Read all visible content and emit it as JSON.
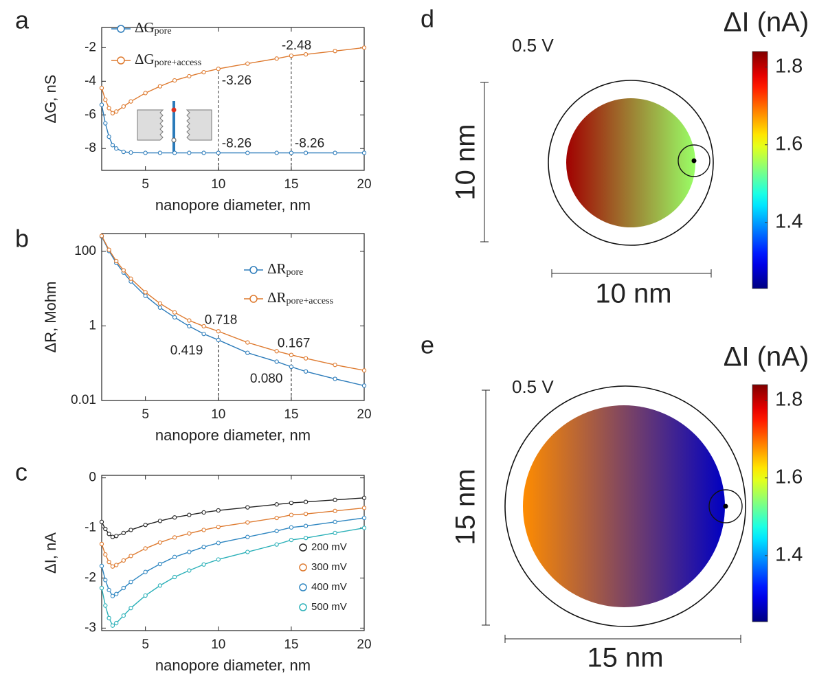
{
  "chart_data": [
    {
      "panel": "a",
      "type": "line",
      "xlabel": "nanopore diameter, nm",
      "ylabel": "ΔG, nS",
      "x": [
        2,
        2.25,
        2.5,
        2.75,
        3,
        3.5,
        4,
        5,
        6,
        7,
        8,
        9,
        10,
        12,
        14,
        15,
        16,
        18,
        20
      ],
      "xlim": [
        2,
        20
      ],
      "xticks": [
        5,
        10,
        15,
        20
      ],
      "ylim": [
        -9.3,
        -0.8
      ],
      "yticks": [
        -8,
        -6,
        -4,
        -2
      ],
      "legend": "upper left",
      "series": [
        {
          "name": "ΔG",
          "subscript": "pore",
          "color": "#2b7bba",
          "values": [
            -5.4,
            -6.5,
            -7.3,
            -7.8,
            -8.0,
            -8.2,
            -8.24,
            -8.26,
            -8.26,
            -8.26,
            -8.26,
            -8.26,
            -8.26,
            -8.26,
            -8.26,
            -8.26,
            -8.26,
            -8.26,
            -8.26
          ]
        },
        {
          "name": "ΔG",
          "subscript": "pore+access",
          "color": "#de7a2f",
          "values": [
            -4.4,
            -5.1,
            -5.6,
            -5.9,
            -5.8,
            -5.5,
            -5.2,
            -4.7,
            -4.3,
            -3.95,
            -3.7,
            -3.46,
            -3.26,
            -2.95,
            -2.65,
            -2.48,
            -2.4,
            -2.2,
            -2.0
          ]
        }
      ],
      "annotations": [
        {
          "x": 10,
          "y": -8.26
        },
        {
          "x": 15,
          "y": -8.26
        },
        {
          "x": 10,
          "y": -3.26
        },
        {
          "x": 15,
          "y": -2.48
        }
      ]
    },
    {
      "panel": "b",
      "type": "line",
      "log": true,
      "xlabel": "nanopore diameter, nm",
      "ylabel": "ΔR, Mohm",
      "x": [
        2,
        2.5,
        3,
        3.5,
        4,
        5,
        6,
        7,
        8,
        9,
        10,
        12,
        14,
        15,
        16,
        18,
        20
      ],
      "xlim": [
        2,
        20
      ],
      "xticks": [
        5,
        10,
        15,
        20
      ],
      "ylim": [
        0.01,
        300
      ],
      "yticks": [
        0.01,
        1,
        100
      ],
      "legend": "center right",
      "series": [
        {
          "name": "ΔR",
          "subscript": "pore",
          "color": "#2b7bba",
          "values": [
            250,
            102,
            49,
            27,
            15.6,
            6.4,
            3.1,
            1.7,
            0.98,
            0.61,
            0.419,
            0.19,
            0.11,
            0.08,
            0.06,
            0.038,
            0.025
          ]
        },
        {
          "name": "ΔR",
          "subscript": "pore+access",
          "color": "#de7a2f",
          "values": [
            260,
            110,
            55,
            31,
            18.5,
            8,
            4,
            2.3,
            1.4,
            0.98,
            0.718,
            0.36,
            0.21,
            0.167,
            0.135,
            0.09,
            0.064
          ]
        }
      ],
      "annotations": [
        {
          "x": 10,
          "y": 0.718
        },
        {
          "x": 10,
          "y": 0.419
        },
        {
          "x": 15,
          "y": 0.167
        },
        {
          "x": 15,
          "y": 0.08,
          "label": "0.080"
        }
      ]
    },
    {
      "panel": "c",
      "type": "line",
      "xlabel": "nanopore diameter, nm",
      "ylabel": "ΔI, nA",
      "x": [
        2,
        2.25,
        2.5,
        2.75,
        3,
        3.5,
        4,
        5,
        6,
        7,
        8,
        9,
        10,
        12,
        14,
        15,
        16,
        18,
        20
      ],
      "xlim": [
        2,
        20
      ],
      "xticks": [
        5,
        10,
        15,
        20
      ],
      "ylim": [
        -3.05,
        0.05
      ],
      "yticks": [
        -3,
        -2,
        -1,
        0
      ],
      "legend": "lower right",
      "series": [
        {
          "name": "200 mV",
          "color": "#222222",
          "values": [
            -0.88,
            -1.02,
            -1.12,
            -1.18,
            -1.16,
            -1.1,
            -1.04,
            -0.94,
            -0.86,
            -0.79,
            -0.74,
            -0.69,
            -0.65,
            -0.59,
            -0.53,
            -0.5,
            -0.48,
            -0.44,
            -0.4
          ]
        },
        {
          "name": "300 mV",
          "color": "#de7a2f",
          "values": [
            -1.32,
            -1.53,
            -1.68,
            -1.77,
            -1.74,
            -1.65,
            -1.56,
            -1.41,
            -1.29,
            -1.19,
            -1.11,
            -1.04,
            -0.98,
            -0.89,
            -0.8,
            -0.74,
            -0.72,
            -0.66,
            -0.6
          ]
        },
        {
          "name": "400 mV",
          "color": "#2e86c1",
          "values": [
            -1.76,
            -2.04,
            -2.24,
            -2.36,
            -2.32,
            -2.2,
            -2.08,
            -1.88,
            -1.72,
            -1.58,
            -1.48,
            -1.38,
            -1.3,
            -1.18,
            -1.06,
            -0.99,
            -0.96,
            -0.88,
            -0.8
          ]
        },
        {
          "name": "500 mV",
          "color": "#2ab0b8",
          "values": [
            -2.2,
            -2.55,
            -2.8,
            -2.95,
            -2.9,
            -2.75,
            -2.6,
            -2.35,
            -2.15,
            -1.98,
            -1.85,
            -1.73,
            -1.63,
            -1.48,
            -1.33,
            -1.24,
            -1.2,
            -1.1,
            -1.0
          ]
        }
      ]
    },
    {
      "panel": "d",
      "type": "map",
      "voltage": "0.5 V",
      "colorbar_title": "ΔI (nA)",
      "clim": [
        1.23,
        1.84
      ],
      "cticks": [
        1.4,
        1.6,
        1.8
      ],
      "gradient": [
        1.82,
        1.55
      ],
      "scale_x_label": "10 nm",
      "scale_y_label": "10 nm"
    },
    {
      "panel": "e",
      "type": "map",
      "voltage": "0.5 V",
      "colorbar_title": "ΔI (nA)",
      "clim": [
        1.23,
        1.84
      ],
      "cticks": [
        1.4,
        1.6,
        1.8
      ],
      "gradient": [
        1.68,
        1.27
      ],
      "scale_x_label": "15 nm",
      "scale_y_label": "15 nm"
    }
  ]
}
